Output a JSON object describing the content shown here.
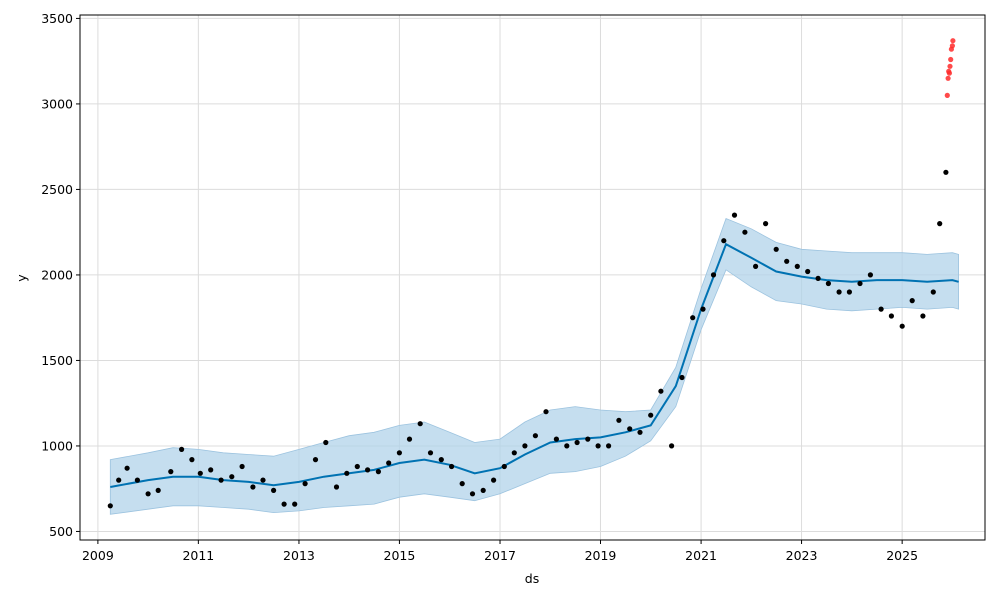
{
  "chart_data": {
    "type": "scatter",
    "title": "",
    "xlabel": "ds",
    "ylabel": "y",
    "xlim": [
      "2008-08-24",
      "2026-08-26"
    ],
    "ylim": [
      450,
      3520
    ],
    "x_ticks": [
      "2009",
      "2011",
      "2013",
      "2015",
      "2017",
      "2019",
      "2021",
      "2023",
      "2025"
    ],
    "y_ticks": [
      500,
      1000,
      1500,
      2000,
      2500,
      3000,
      3500
    ],
    "grid": true,
    "legend": "none",
    "colors": {
      "observed": "#000000",
      "out_of_sample": "#ff2a2a",
      "forecast_line": "#0072b2",
      "uncertainty_band": "#b2d3ea",
      "grid": "#dcdcdc"
    },
    "series": [
      {
        "role": "observed",
        "marker": "dot",
        "x": [
          "2009-04-01",
          "2009-06-01",
          "2009-08-01",
          "2009-10-15",
          "2010-01-01",
          "2010-03-15",
          "2010-06-15",
          "2010-09-01",
          "2010-11-15",
          "2011-01-15",
          "2011-04-01",
          "2011-06-15",
          "2011-09-01",
          "2011-11-15",
          "2012-02-01",
          "2012-04-15",
          "2012-07-01",
          "2012-09-15",
          "2012-12-01",
          "2013-02-15",
          "2013-05-01",
          "2013-07-15",
          "2013-10-01",
          "2013-12-15",
          "2014-03-01",
          "2014-05-15",
          "2014-08-01",
          "2014-10-15",
          "2015-01-01",
          "2015-03-15",
          "2015-06-01",
          "2015-08-15",
          "2015-11-01",
          "2016-01-15",
          "2016-04-01",
          "2016-06-15",
          "2016-09-01",
          "2016-11-15",
          "2017-02-01",
          "2017-04-15",
          "2017-07-01",
          "2017-09-15",
          "2017-12-01",
          "2018-02-15",
          "2018-05-01",
          "2018-07-15",
          "2018-10-01",
          "2018-12-15",
          "2019-03-01",
          "2019-05-15",
          "2019-08-01",
          "2019-10-15",
          "2020-01-01",
          "2020-03-15",
          "2020-06-01",
          "2020-08-15",
          "2020-11-01",
          "2021-01-15",
          "2021-04-01",
          "2021-06-15",
          "2021-09-01",
          "2021-11-15",
          "2022-02-01",
          "2022-04-15",
          "2022-07-01",
          "2022-09-15",
          "2022-12-01",
          "2023-02-15",
          "2023-05-01",
          "2023-07-15",
          "2023-10-01",
          "2023-12-15",
          "2024-03-01",
          "2024-05-15",
          "2024-08-01",
          "2024-10-15",
          "2025-01-01",
          "2025-03-15",
          "2025-06-01",
          "2025-08-15",
          "2025-10-01",
          "2025-11-15"
        ],
        "y": [
          650,
          800,
          870,
          800,
          720,
          740,
          850,
          980,
          920,
          840,
          860,
          800,
          820,
          880,
          760,
          800,
          740,
          660,
          660,
          780,
          920,
          1020,
          760,
          840,
          880,
          860,
          850,
          900,
          960,
          1040,
          1130,
          960,
          920,
          880,
          780,
          720,
          740,
          800,
          880,
          960,
          1000,
          1060,
          1200,
          1040,
          1000,
          1020,
          1040,
          1000,
          1000,
          1150,
          1100,
          1080,
          1180,
          1320,
          1000,
          1400,
          1750,
          1800,
          2000,
          2200,
          2350,
          2250,
          2050,
          2300,
          2150,
          2080,
          2050,
          2020,
          1980,
          1950,
          1900,
          1900,
          1950,
          2000,
          1800,
          1760,
          1700,
          1850,
          1760,
          1900,
          2300,
          2600
        ]
      },
      {
        "role": "out_of_sample",
        "marker": "dot",
        "x": [
          "2025-11-25",
          "2025-12-01",
          "2025-12-05",
          "2025-12-10",
          "2025-12-15",
          "2025-12-20",
          "2025-12-25",
          "2026-01-01",
          "2026-01-05"
        ],
        "y": [
          3050,
          3150,
          3190,
          3180,
          3220,
          3260,
          3320,
          3340,
          3370
        ]
      },
      {
        "role": "forecast_line",
        "x": [
          "2009-04-01",
          "2010-01-01",
          "2010-07-01",
          "2011-01-01",
          "2011-07-01",
          "2012-01-01",
          "2012-07-01",
          "2013-01-01",
          "2013-07-01",
          "2014-01-01",
          "2014-07-01",
          "2015-01-01",
          "2015-07-01",
          "2016-01-01",
          "2016-07-01",
          "2017-01-01",
          "2017-07-01",
          "2018-01-01",
          "2018-07-01",
          "2019-01-01",
          "2019-07-01",
          "2020-01-01",
          "2020-07-01",
          "2021-01-01",
          "2021-07-01",
          "2022-01-01",
          "2022-07-01",
          "2023-01-01",
          "2023-07-01",
          "2024-01-01",
          "2024-07-01",
          "2025-01-01",
          "2025-07-01",
          "2026-01-01",
          "2026-02-15"
        ],
        "y": [
          760,
          800,
          820,
          820,
          800,
          790,
          770,
          790,
          820,
          840,
          860,
          900,
          920,
          890,
          840,
          870,
          950,
          1020,
          1040,
          1050,
          1080,
          1120,
          1350,
          1800,
          2180,
          2100,
          2020,
          1990,
          1970,
          1960,
          1970,
          1970,
          1960,
          1970,
          1960
        ]
      },
      {
        "role": "uncertainty_band",
        "x": [
          "2009-04-01",
          "2010-01-01",
          "2010-07-01",
          "2011-01-01",
          "2011-07-01",
          "2012-01-01",
          "2012-07-01",
          "2013-01-01",
          "2013-07-01",
          "2014-01-01",
          "2014-07-01",
          "2015-01-01",
          "2015-07-01",
          "2016-01-01",
          "2016-07-01",
          "2017-01-01",
          "2017-07-01",
          "2018-01-01",
          "2018-07-01",
          "2019-01-01",
          "2019-07-01",
          "2020-01-01",
          "2020-07-01",
          "2021-01-01",
          "2021-07-01",
          "2022-01-01",
          "2022-07-01",
          "2023-01-01",
          "2023-07-01",
          "2024-01-01",
          "2024-07-01",
          "2025-01-01",
          "2025-07-01",
          "2026-01-01",
          "2026-02-15"
        ],
        "y_upper": [
          920,
          960,
          990,
          980,
          960,
          950,
          940,
          980,
          1020,
          1060,
          1080,
          1120,
          1140,
          1080,
          1020,
          1040,
          1140,
          1210,
          1230,
          1210,
          1200,
          1210,
          1460,
          1920,
          2330,
          2270,
          2190,
          2150,
          2140,
          2130,
          2130,
          2130,
          2120,
          2130,
          2120
        ],
        "y_lower": [
          600,
          630,
          650,
          650,
          640,
          630,
          610,
          620,
          640,
          650,
          660,
          700,
          720,
          700,
          680,
          720,
          780,
          840,
          850,
          880,
          940,
          1030,
          1230,
          1680,
          2030,
          1930,
          1850,
          1830,
          1800,
          1790,
          1800,
          1810,
          1800,
          1810,
          1800
        ]
      }
    ]
  }
}
